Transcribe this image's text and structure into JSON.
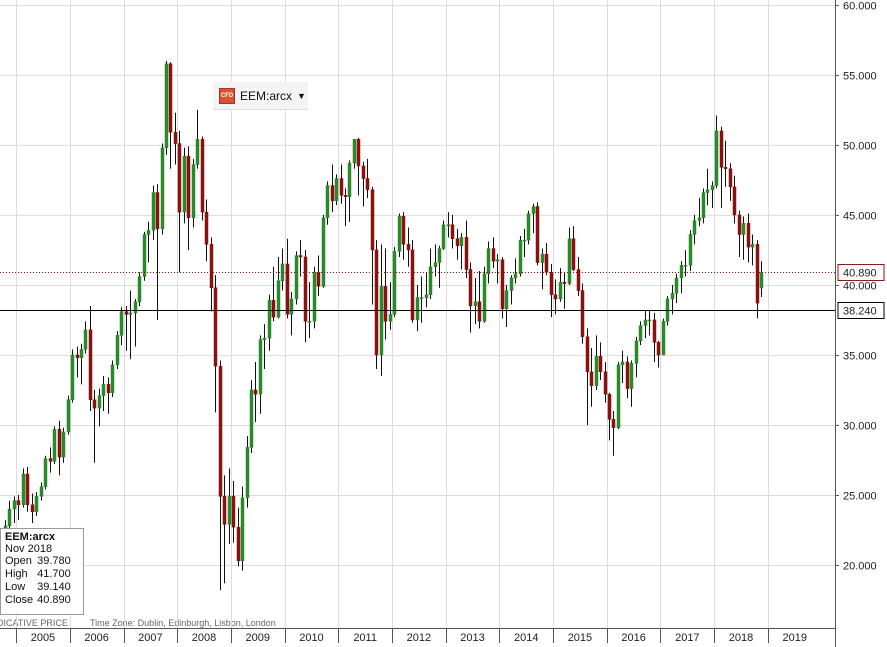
{
  "chart_data": {
    "type": "candlestick",
    "symbol": "EEM:arcx",
    "xlim": [
      2004.7,
      2020.25
    ],
    "xticks": [
      2005,
      2006,
      2007,
      2008,
      2009,
      2010,
      2011,
      2012,
      2013,
      2014,
      2015,
      2016,
      2017,
      2018,
      2019
    ],
    "ylim": [
      15.5,
      60.35
    ],
    "yticks": [
      {
        "value": 20,
        "label": "20.000"
      },
      {
        "value": 25,
        "label": "25.000"
      },
      {
        "value": 30,
        "label": "30.000"
      },
      {
        "value": 35,
        "label": "35.000"
      },
      {
        "value": 40,
        "label": "40.000"
      },
      {
        "value": 45,
        "label": "45.000"
      },
      {
        "value": 50,
        "label": "50.000"
      },
      {
        "value": 55,
        "label": "55.000"
      },
      {
        "value": 60,
        "label": "60.000"
      }
    ],
    "grid": true,
    "up_color": "#2a8a2a",
    "down_color": "#8b1010",
    "last_price": {
      "value": 40.89,
      "label": "40.890",
      "color": "#c00000"
    },
    "reference_line": {
      "value": 38.24,
      "label": "38.240",
      "color": "#000000"
    },
    "x": [
      2004.792,
      2004.875,
      2004.958,
      2005.042,
      2005.125,
      2005.208,
      2005.292,
      2005.375,
      2005.458,
      2005.542,
      2005.625,
      2005.708,
      2005.792,
      2005.875,
      2005.958,
      2006.042,
      2006.125,
      2006.208,
      2006.292,
      2006.375,
      2006.458,
      2006.542,
      2006.625,
      2006.708,
      2006.792,
      2006.875,
      2006.958,
      2007.042,
      2007.125,
      2007.208,
      2007.292,
      2007.375,
      2007.458,
      2007.542,
      2007.625,
      2007.708,
      2007.792,
      2007.875,
      2007.958,
      2008.042,
      2008.125,
      2008.208,
      2008.292,
      2008.375,
      2008.458,
      2008.542,
      2008.625,
      2008.708,
      2008.792,
      2008.875,
      2008.958,
      2009.042,
      2009.125,
      2009.208,
      2009.292,
      2009.375,
      2009.458,
      2009.542,
      2009.625,
      2009.708,
      2009.792,
      2009.875,
      2009.958,
      2010.042,
      2010.125,
      2010.208,
      2010.292,
      2010.375,
      2010.458,
      2010.542,
      2010.625,
      2010.708,
      2010.792,
      2010.875,
      2010.958,
      2011.042,
      2011.125,
      2011.208,
      2011.292,
      2011.375,
      2011.458,
      2011.542,
      2011.625,
      2011.708,
      2011.792,
      2011.875,
      2011.958,
      2012.042,
      2012.125,
      2012.208,
      2012.292,
      2012.375,
      2012.458,
      2012.542,
      2012.625,
      2012.708,
      2012.792,
      2012.875,
      2012.958,
      2013.042,
      2013.125,
      2013.208,
      2013.292,
      2013.375,
      2013.458,
      2013.542,
      2013.625,
      2013.708,
      2013.792,
      2013.875,
      2013.958,
      2014.042,
      2014.125,
      2014.208,
      2014.292,
      2014.375,
      2014.458,
      2014.542,
      2014.625,
      2014.708,
      2014.792,
      2014.875,
      2014.958,
      2015.042,
      2015.125,
      2015.208,
      2015.292,
      2015.375,
      2015.458,
      2015.542,
      2015.625,
      2015.708,
      2015.792,
      2015.875,
      2015.958,
      2016.042,
      2016.125,
      2016.208,
      2016.292,
      2016.375,
      2016.458,
      2016.542,
      2016.625,
      2016.708,
      2016.792,
      2016.875,
      2016.958,
      2017.042,
      2017.125,
      2017.208,
      2017.292,
      2017.375,
      2017.458,
      2017.542,
      2017.625,
      2017.708,
      2017.792,
      2017.875,
      2017.958,
      2018.042,
      2018.125,
      2018.208,
      2018.292,
      2018.375,
      2018.458,
      2018.542,
      2018.625,
      2018.708,
      2018.792,
      2018.875
    ],
    "candles": [
      [
        22.0,
        23.2,
        21.5,
        22.8
      ],
      [
        22.8,
        24.6,
        22.6,
        24.0
      ],
      [
        24.0,
        24.9,
        23.0,
        24.6
      ],
      [
        24.6,
        25.0,
        23.2,
        24.3
      ],
      [
        24.3,
        26.9,
        24.1,
        26.5
      ],
      [
        26.5,
        27.0,
        23.8,
        24.3
      ],
      [
        24.3,
        25.1,
        23.0,
        23.8
      ],
      [
        23.8,
        25.2,
        23.5,
        24.9
      ],
      [
        24.9,
        25.9,
        24.6,
        25.6
      ],
      [
        25.6,
        27.8,
        25.4,
        27.6
      ],
      [
        27.6,
        28.4,
        26.6,
        27.4
      ],
      [
        27.4,
        29.9,
        27.2,
        29.7
      ],
      [
        29.7,
        30.3,
        26.4,
        27.7
      ],
      [
        27.7,
        29.8,
        27.3,
        29.5
      ],
      [
        29.5,
        32.1,
        29.3,
        31.8
      ],
      [
        31.8,
        35.4,
        31.6,
        35.0
      ],
      [
        35.0,
        35.6,
        33.4,
        34.8
      ],
      [
        34.8,
        35.8,
        32.9,
        35.4
      ],
      [
        35.4,
        37.4,
        35.1,
        36.8
      ],
      [
        36.8,
        38.5,
        31.0,
        31.8
      ],
      [
        31.8,
        32.5,
        27.3,
        31.2
      ],
      [
        31.2,
        32.6,
        29.9,
        32.1
      ],
      [
        32.1,
        33.5,
        31.0,
        32.9
      ],
      [
        32.9,
        33.4,
        30.8,
        32.3
      ],
      [
        32.3,
        34.6,
        32.0,
        34.3
      ],
      [
        34.3,
        36.7,
        34.0,
        36.4
      ],
      [
        36.4,
        38.4,
        35.7,
        38.1
      ],
      [
        38.1,
        38.5,
        35.3,
        37.9
      ],
      [
        37.9,
        39.6,
        34.7,
        38.0
      ],
      [
        38.0,
        39.0,
        35.6,
        38.8
      ],
      [
        38.8,
        40.9,
        38.5,
        40.6
      ],
      [
        40.6,
        43.8,
        40.3,
        43.6
      ],
      [
        43.6,
        44.5,
        41.6,
        43.9
      ],
      [
        43.9,
        47.1,
        43.2,
        46.6
      ],
      [
        46.6,
        47.2,
        37.5,
        44.0
      ],
      [
        44.0,
        50.1,
        43.6,
        49.8
      ],
      [
        49.8,
        56.0,
        49.3,
        55.8
      ],
      [
        55.8,
        55.9,
        48.3,
        50.9
      ],
      [
        50.9,
        52.3,
        48.6,
        50.1
      ],
      [
        50.1,
        51.0,
        40.9,
        45.2
      ],
      [
        45.2,
        49.8,
        44.4,
        49.2
      ],
      [
        49.2,
        49.9,
        42.5,
        44.8
      ],
      [
        44.8,
        49.0,
        44.1,
        48.6
      ],
      [
        48.6,
        52.5,
        48.3,
        50.4
      ],
      [
        50.4,
        50.6,
        44.6,
        45.2
      ],
      [
        45.2,
        46.1,
        41.7,
        42.9
      ],
      [
        42.9,
        43.4,
        38.1,
        39.8
      ],
      [
        39.8,
        40.7,
        30.9,
        34.2
      ],
      [
        34.2,
        34.6,
        18.2,
        24.9
      ],
      [
        24.9,
        26.4,
        18.7,
        22.9
      ],
      [
        22.9,
        26.9,
        21.5,
        24.9
      ],
      [
        24.9,
        26.0,
        21.6,
        22.7
      ],
      [
        22.7,
        24.1,
        19.9,
        20.3
      ],
      [
        20.3,
        25.6,
        19.6,
        24.8
      ],
      [
        24.8,
        29.2,
        24.1,
        28.4
      ],
      [
        28.4,
        33.2,
        28.0,
        32.5
      ],
      [
        32.5,
        34.5,
        30.2,
        32.2
      ],
      [
        32.2,
        36.4,
        30.8,
        36.1
      ],
      [
        36.1,
        37.2,
        34.0,
        36.2
      ],
      [
        36.2,
        39.3,
        35.3,
        38.9
      ],
      [
        38.9,
        41.3,
        37.4,
        37.7
      ],
      [
        37.7,
        42.0,
        37.6,
        40.3
      ],
      [
        40.3,
        42.6,
        39.6,
        41.5
      ],
      [
        41.5,
        43.3,
        37.6,
        37.9
      ],
      [
        37.9,
        39.5,
        36.4,
        39.0
      ],
      [
        39.0,
        42.4,
        38.6,
        42.1
      ],
      [
        42.1,
        43.2,
        40.6,
        42.0
      ],
      [
        42.0,
        42.5,
        35.9,
        37.4
      ],
      [
        37.4,
        40.2,
        36.2,
        37.4
      ],
      [
        37.4,
        41.3,
        36.9,
        40.9
      ],
      [
        40.9,
        42.1,
        39.2,
        39.9
      ],
      [
        39.9,
        45.0,
        39.8,
        44.8
      ],
      [
        44.8,
        47.4,
        44.3,
        47.1
      ],
      [
        47.1,
        48.6,
        45.2,
        46.0
      ],
      [
        46.0,
        47.9,
        45.7,
        47.6
      ],
      [
        47.6,
        48.6,
        45.8,
        46.4
      ],
      [
        46.4,
        46.9,
        44.2,
        46.3
      ],
      [
        46.3,
        48.9,
        44.5,
        48.7
      ],
      [
        48.7,
        50.4,
        48.3,
        50.4
      ],
      [
        50.4,
        50.5,
        46.4,
        48.5
      ],
      [
        48.5,
        48.8,
        45.6,
        47.6
      ],
      [
        47.6,
        49.0,
        46.2,
        46.8
      ],
      [
        46.8,
        47.0,
        38.6,
        42.5
      ],
      [
        42.5,
        43.2,
        34.0,
        35.0
      ],
      [
        35.0,
        42.9,
        33.5,
        39.9
      ],
      [
        39.9,
        42.6,
        36.1,
        37.4
      ],
      [
        37.4,
        40.2,
        36.8,
        37.9
      ],
      [
        37.9,
        42.7,
        37.7,
        42.4
      ],
      [
        42.4,
        45.1,
        42.0,
        44.9
      ],
      [
        44.9,
        45.2,
        41.8,
        42.9
      ],
      [
        42.9,
        44.1,
        41.3,
        42.5
      ],
      [
        42.5,
        43.2,
        37.3,
        37.5
      ],
      [
        37.5,
        40.0,
        36.7,
        39.1
      ],
      [
        39.1,
        40.6,
        37.3,
        39.1
      ],
      [
        39.1,
        40.9,
        38.4,
        39.3
      ],
      [
        39.3,
        42.6,
        39.0,
        41.3
      ],
      [
        41.3,
        42.9,
        40.6,
        41.6
      ],
      [
        41.6,
        42.8,
        39.8,
        42.6
      ],
      [
        42.6,
        44.6,
        42.5,
        44.3
      ],
      [
        44.3,
        45.2,
        43.4,
        44.3
      ],
      [
        44.3,
        45.0,
        42.6,
        43.3
      ],
      [
        43.3,
        44.0,
        41.8,
        42.8
      ],
      [
        42.8,
        43.7,
        41.1,
        43.4
      ],
      [
        43.4,
        44.6,
        40.5,
        41.1
      ],
      [
        41.1,
        41.6,
        36.6,
        38.5
      ],
      [
        38.5,
        40.5,
        37.2,
        38.8
      ],
      [
        38.8,
        41.0,
        36.9,
        37.4
      ],
      [
        37.4,
        41.3,
        37.3,
        40.8
      ],
      [
        40.8,
        43.1,
        40.1,
        42.6
      ],
      [
        42.6,
        43.4,
        41.2,
        41.7
      ],
      [
        41.7,
        42.2,
        40.1,
        41.8
      ],
      [
        41.8,
        42.0,
        37.6,
        38.3
      ],
      [
        38.3,
        40.0,
        37.0,
        39.6
      ],
      [
        39.6,
        40.7,
        38.6,
        40.5
      ],
      [
        40.5,
        41.9,
        40.1,
        40.8
      ],
      [
        40.8,
        43.5,
        40.6,
        43.2
      ],
      [
        43.2,
        44.0,
        42.0,
        43.2
      ],
      [
        43.2,
        45.3,
        42.9,
        45.1
      ],
      [
        45.1,
        45.8,
        43.7,
        45.6
      ],
      [
        45.6,
        45.9,
        41.4,
        41.6
      ],
      [
        41.6,
        42.6,
        39.7,
        42.2
      ],
      [
        42.2,
        43.0,
        40.7,
        40.9
      ],
      [
        40.9,
        41.5,
        37.7,
        39.3
      ],
      [
        39.3,
        40.4,
        37.9,
        39.0
      ],
      [
        39.0,
        41.2,
        38.8,
        40.2
      ],
      [
        40.2,
        40.9,
        38.3,
        40.1
      ],
      [
        40.1,
        44.1,
        40.0,
        43.3
      ],
      [
        43.3,
        44.2,
        41.0,
        41.1
      ],
      [
        41.1,
        42.0,
        39.2,
        39.6
      ],
      [
        39.6,
        40.1,
        35.8,
        36.3
      ],
      [
        36.3,
        36.9,
        30.0,
        33.8
      ],
      [
        33.8,
        35.5,
        31.3,
        32.8
      ],
      [
        32.8,
        36.4,
        32.5,
        34.9
      ],
      [
        34.9,
        35.9,
        33.2,
        33.8
      ],
      [
        33.8,
        34.5,
        31.6,
        32.2
      ],
      [
        32.2,
        32.3,
        28.9,
        30.4
      ],
      [
        30.4,
        31.0,
        27.8,
        29.8
      ],
      [
        29.8,
        34.5,
        29.7,
        34.3
      ],
      [
        34.3,
        35.3,
        33.0,
        34.5
      ],
      [
        34.5,
        34.9,
        31.9,
        32.6
      ],
      [
        32.6,
        34.6,
        31.3,
        34.4
      ],
      [
        34.4,
        36.3,
        33.4,
        36.0
      ],
      [
        36.0,
        37.4,
        35.7,
        37.1
      ],
      [
        37.1,
        38.2,
        36.2,
        37.5
      ],
      [
        37.5,
        38.2,
        36.4,
        37.5
      ],
      [
        37.5,
        38.0,
        34.5,
        35.9
      ],
      [
        35.9,
        36.0,
        34.1,
        35.0
      ],
      [
        35.0,
        37.6,
        35.0,
        37.4
      ],
      [
        37.4,
        39.2,
        37.1,
        39.0
      ],
      [
        39.0,
        40.0,
        37.9,
        39.4
      ],
      [
        39.4,
        40.8,
        38.7,
        40.5
      ],
      [
        40.5,
        41.7,
        39.4,
        41.4
      ],
      [
        41.4,
        42.5,
        40.6,
        41.4
      ],
      [
        41.4,
        43.9,
        41.0,
        43.6
      ],
      [
        43.6,
        45.0,
        42.9,
        44.6
      ],
      [
        44.6,
        46.2,
        44.2,
        44.8
      ],
      [
        44.8,
        46.9,
        44.4,
        46.6
      ],
      [
        46.6,
        48.3,
        45.7,
        46.8
      ],
      [
        46.8,
        47.4,
        45.5,
        47.1
      ],
      [
        47.1,
        52.1,
        46.9,
        51.0
      ],
      [
        51.0,
        51.3,
        45.5,
        48.4
      ],
      [
        48.4,
        50.3,
        47.0,
        48.3
      ],
      [
        48.3,
        48.7,
        46.0,
        47.0
      ],
      [
        47.0,
        47.8,
        44.4,
        45.0
      ],
      [
        45.0,
        45.3,
        42.0,
        43.6
      ],
      [
        43.6,
        44.9,
        41.8,
        44.4
      ],
      [
        44.4,
        45.1,
        41.6,
        42.7
      ],
      [
        42.7,
        43.6,
        41.4,
        42.9
      ],
      [
        42.9,
        43.2,
        37.6,
        38.7
      ],
      [
        39.78,
        41.7,
        39.14,
        40.89
      ]
    ],
    "info": {
      "symbol": "EEM:arcx",
      "date": "Nov 2018",
      "rows": [
        [
          "Open",
          "39.780"
        ],
        [
          "High",
          "41.700"
        ],
        [
          "Low",
          "39.140"
        ],
        [
          "Close",
          "40.890"
        ]
      ]
    },
    "footer": {
      "price_type": "INDICATIVE PRICE",
      "time_zone": "Time Zone: Dublin, Edinburgh, Lisbon, London"
    }
  }
}
